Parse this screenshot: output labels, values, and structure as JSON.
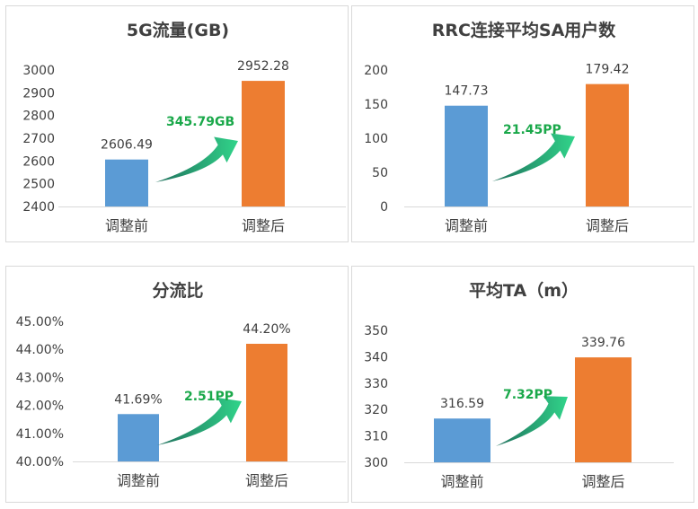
{
  "colors": {
    "before": "#5b9bd5",
    "after": "#ed7d31",
    "delta": "#1aa84a"
  },
  "chart_data": [
    {
      "type": "bar",
      "title": "5G流量(GB)",
      "categories": [
        "调整前",
        "调整后"
      ],
      "values": [
        2606.49,
        2952.28
      ],
      "value_labels": [
        "2606.49",
        "2952.28"
      ],
      "yticks": [
        "2400",
        "2500",
        "2600",
        "2700",
        "2800",
        "2900",
        "3000"
      ],
      "ylim": [
        2400,
        3000
      ],
      "delta_label": "345.79GB"
    },
    {
      "type": "bar",
      "title": "RRC连接平均SA用户数",
      "categories": [
        "调整前",
        "调整后"
      ],
      "values": [
        147.73,
        179.42
      ],
      "value_labels": [
        "147.73",
        "179.42"
      ],
      "yticks": [
        "0",
        "50",
        "100",
        "150",
        "200"
      ],
      "ylim": [
        0,
        200
      ],
      "delta_label": "21.45PP"
    },
    {
      "type": "bar",
      "title": "分流比",
      "categories": [
        "调整前",
        "调整后"
      ],
      "values": [
        41.69,
        44.2
      ],
      "value_labels": [
        "41.69%",
        "44.20%"
      ],
      "yticks": [
        "40.00%",
        "41.00%",
        "42.00%",
        "43.00%",
        "44.00%",
        "45.00%"
      ],
      "ylim": [
        40,
        45
      ],
      "delta_label": "2.51PP"
    },
    {
      "type": "bar",
      "title": "平均TA（m）",
      "categories": [
        "调整前",
        "调整后"
      ],
      "values": [
        316.59,
        339.76
      ],
      "value_labels": [
        "316.59",
        "339.76"
      ],
      "yticks": [
        "300",
        "310",
        "320",
        "330",
        "340",
        "350"
      ],
      "ylim": [
        300,
        350
      ],
      "delta_label": "7.32PP"
    }
  ]
}
